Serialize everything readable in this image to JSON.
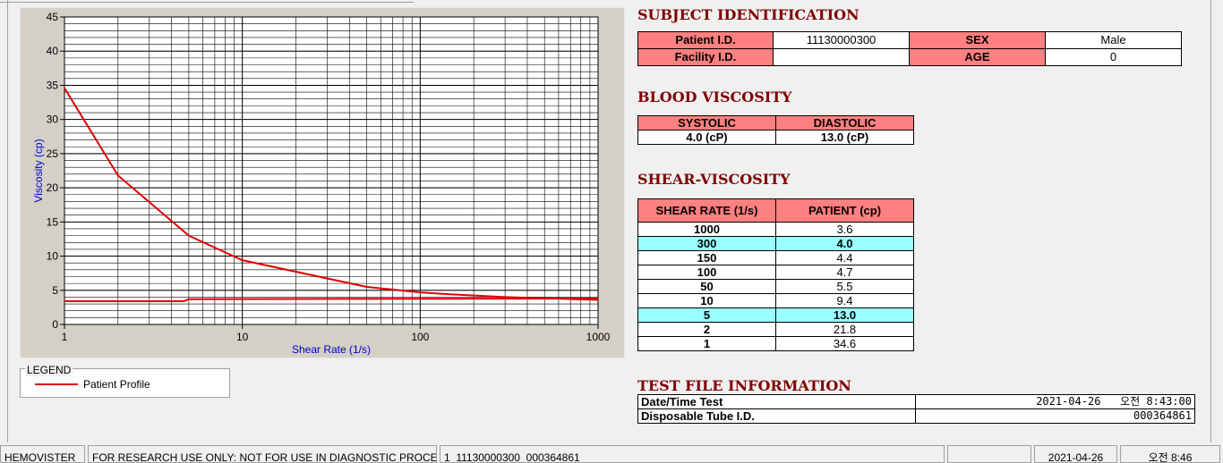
{
  "chart_data": {
    "type": "line",
    "x_label": "Shear Rate (1/s)",
    "y_label": "Viscosity (cp)",
    "xlog": true,
    "xlim": [
      1,
      1000
    ],
    "xticks": [
      1,
      10,
      100,
      1000
    ],
    "ylim": [
      0,
      45
    ],
    "yticks": [
      0,
      5,
      10,
      15,
      20,
      25,
      30,
      35,
      40,
      45
    ],
    "grid": true,
    "minor_grid": true,
    "legend_title": "LEGEND",
    "series": [
      {
        "name": "Patient Profile",
        "color": "#e00000",
        "x": [
          1,
          2,
          5,
          10,
          50,
          100,
          150,
          300,
          1000
        ],
        "values": [
          34.6,
          21.8,
          13.0,
          9.4,
          5.5,
          4.7,
          4.4,
          4.0,
          3.6
        ]
      },
      {
        "color": "#e00000",
        "x": [
          1,
          4.7,
          5,
          1000
        ],
        "values": [
          3.4,
          3.4,
          3.7,
          3.8
        ]
      }
    ]
  },
  "subject": {
    "title": "SUBJECT IDENTIFICATION",
    "rows": [
      [
        "Patient I.D.",
        "11130000300",
        "SEX",
        "Male"
      ],
      [
        "Facility I.D.",
        null,
        "AGE",
        "0"
      ]
    ]
  },
  "blood": {
    "title": "BLOOD VISCOSITY",
    "header": [
      "SYSTOLIC",
      "DIASTOLIC"
    ],
    "values": [
      "4.0 (cP)",
      "13.0 (cP)"
    ]
  },
  "shear": {
    "title": "SHEAR-VISCOSITY",
    "header": [
      "SHEAR RATE (1/s)",
      "PATIENT (cp)"
    ],
    "rows": [
      [
        "1000",
        "3.6"
      ],
      [
        "300",
        "4.0"
      ],
      [
        "150",
        "4.4"
      ],
      [
        "100",
        "4.7"
      ],
      [
        "50",
        "5.5"
      ],
      [
        "10",
        "9.4"
      ],
      [
        "5",
        "13.0"
      ],
      [
        "2",
        "21.8"
      ],
      [
        "1",
        "34.6"
      ]
    ],
    "highlighted_rows": [
      1,
      6
    ],
    "highlight_color": "#99ffff"
  },
  "test_file": {
    "title": "TEST FILE INFORMATION",
    "rows": [
      [
        "Date/Time Test",
        "2021-04-26   오전 8:43:00"
      ],
      [
        "Disposable Tube I.D.",
        "000364861"
      ]
    ]
  },
  "status_bar": [
    "HEMOVISTER",
    "FOR RESEARCH USE ONLY: NOT FOR USE IN DIAGNOSTIC PROCEDURES",
    "1  11130000300  000364861",
    null,
    "2021-04-26",
    "오전 8:46"
  ]
}
